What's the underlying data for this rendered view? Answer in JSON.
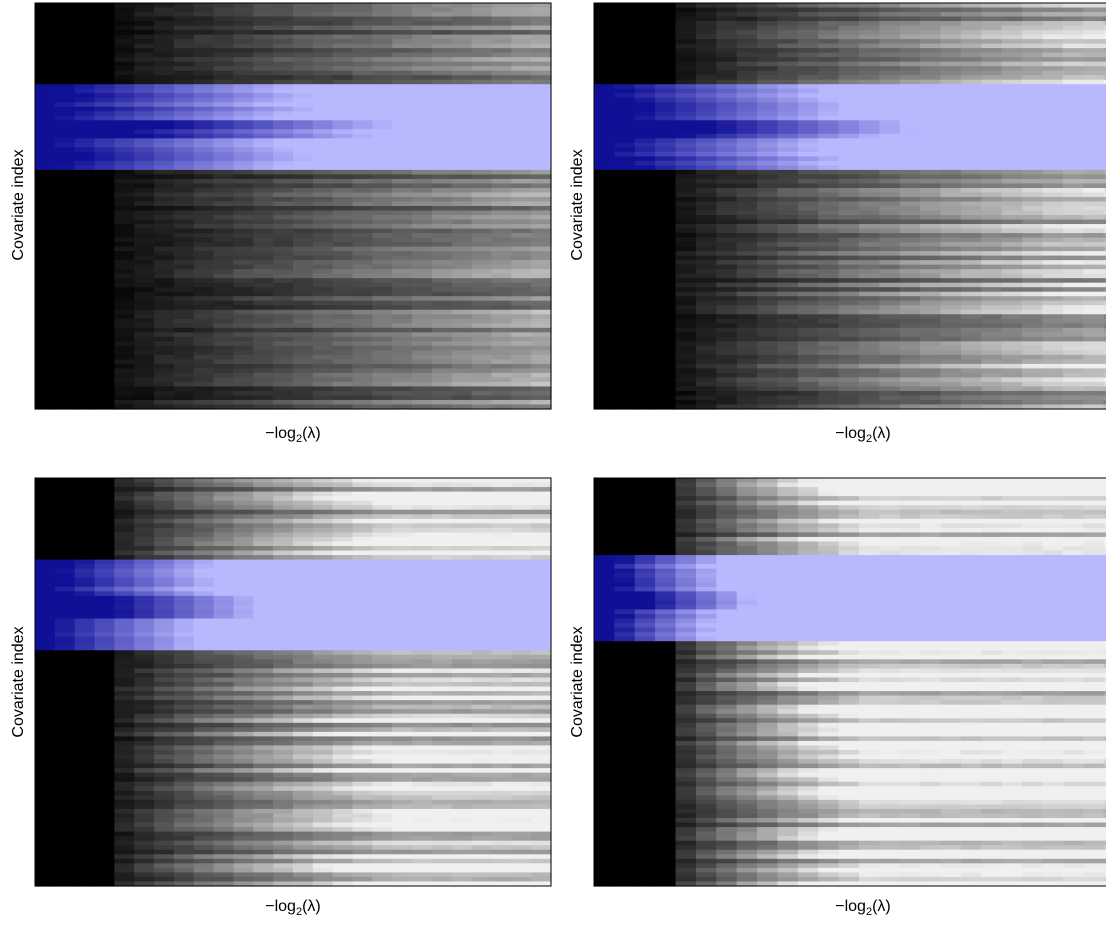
{
  "figure": {
    "panels": [
      {
        "id": "top-left",
        "ylabel": "Covariate index",
        "xlabel": {
          "prefix": "−log",
          "sub": "2",
          "suffix": "(λ)"
        }
      },
      {
        "id": "top-right",
        "ylabel": "Covariate index",
        "xlabel": {
          "prefix": "−log",
          "sub": "2",
          "suffix": "(λ)"
        }
      },
      {
        "id": "bottom-left",
        "ylabel": "Covariate index",
        "xlabel": {
          "prefix": "−log",
          "sub": "2",
          "suffix": "(λ)"
        }
      },
      {
        "id": "bottom-right",
        "ylabel": "Covariate index",
        "xlabel": {
          "prefix": "−log",
          "sub": "2",
          "suffix": "(λ)"
        }
      }
    ]
  },
  "chart_data": [
    {
      "type": "heatmap",
      "title": "",
      "xlabel": "−log2(λ)",
      "ylabel": "Covariate index",
      "colormap": {
        "inactive": "#000000 → #f0f0f0 (grayscale)",
        "highlight": "#1010c0 → #b8b8ff (blue)"
      },
      "grid": false,
      "ticks": "none",
      "highlight_band_fraction": [
        0.2,
        0.41
      ],
      "max_intensity": 0.62,
      "growth_rate": 0.7
    },
    {
      "type": "heatmap",
      "title": "",
      "xlabel": "−log2(λ)",
      "ylabel": "Covariate index",
      "colormap": {
        "inactive": "#000000 → #f0f0f0 (grayscale)",
        "highlight": "#1010c0 → #b8b8ff (blue)"
      },
      "grid": false,
      "ticks": "none",
      "highlight_band_fraction": [
        0.21,
        0.41
      ],
      "max_intensity": 0.78,
      "growth_rate": 0.8
    },
    {
      "type": "heatmap",
      "title": "",
      "xlabel": "−log2(λ)",
      "ylabel": "Covariate index",
      "colormap": {
        "inactive": "#000000 → #f0f0f0 (grayscale)",
        "highlight": "#1010c0 → #b8b8ff (blue)"
      },
      "grid": false,
      "ticks": "none",
      "highlight_band_fraction": [
        0.2,
        0.42
      ],
      "max_intensity": 0.9,
      "growth_rate": 1.1
    },
    {
      "type": "heatmap",
      "title": "",
      "xlabel": "−log2(λ)",
      "ylabel": "Covariate index",
      "colormap": {
        "inactive": "#000000 → #f0f0f0 (grayscale)",
        "highlight": "#1010c0 → #b8b8ff (blue)"
      },
      "grid": false,
      "ticks": "none",
      "highlight_band_fraction": [
        0.19,
        0.39
      ],
      "max_intensity": 1.0,
      "growth_rate": 1.6
    }
  ]
}
